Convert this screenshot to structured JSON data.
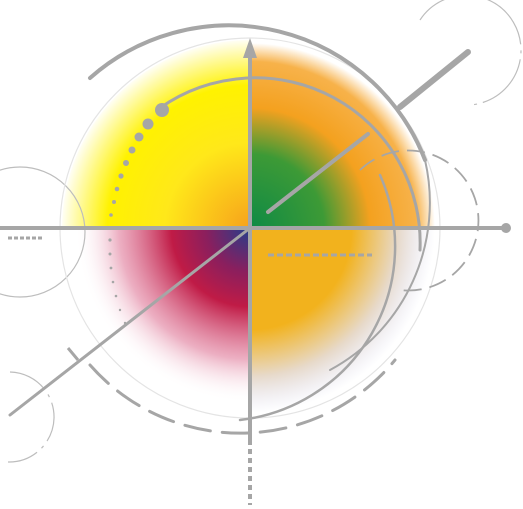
{
  "artwork": {
    "kind": "abstract-logo",
    "colors": {
      "yellow": "#fff200",
      "orange": "#f7a21b",
      "green": "#1a8a3c",
      "gold": "#f2b21d",
      "crimson": "#c01b46",
      "navy": "#243e8c",
      "lavender": "#dcdcf0",
      "line_gray": "#a6a6a6",
      "thin_gray": "#bdbdbd"
    },
    "quadrants": [
      "yellow",
      "green",
      "crimson",
      "gold"
    ]
  }
}
